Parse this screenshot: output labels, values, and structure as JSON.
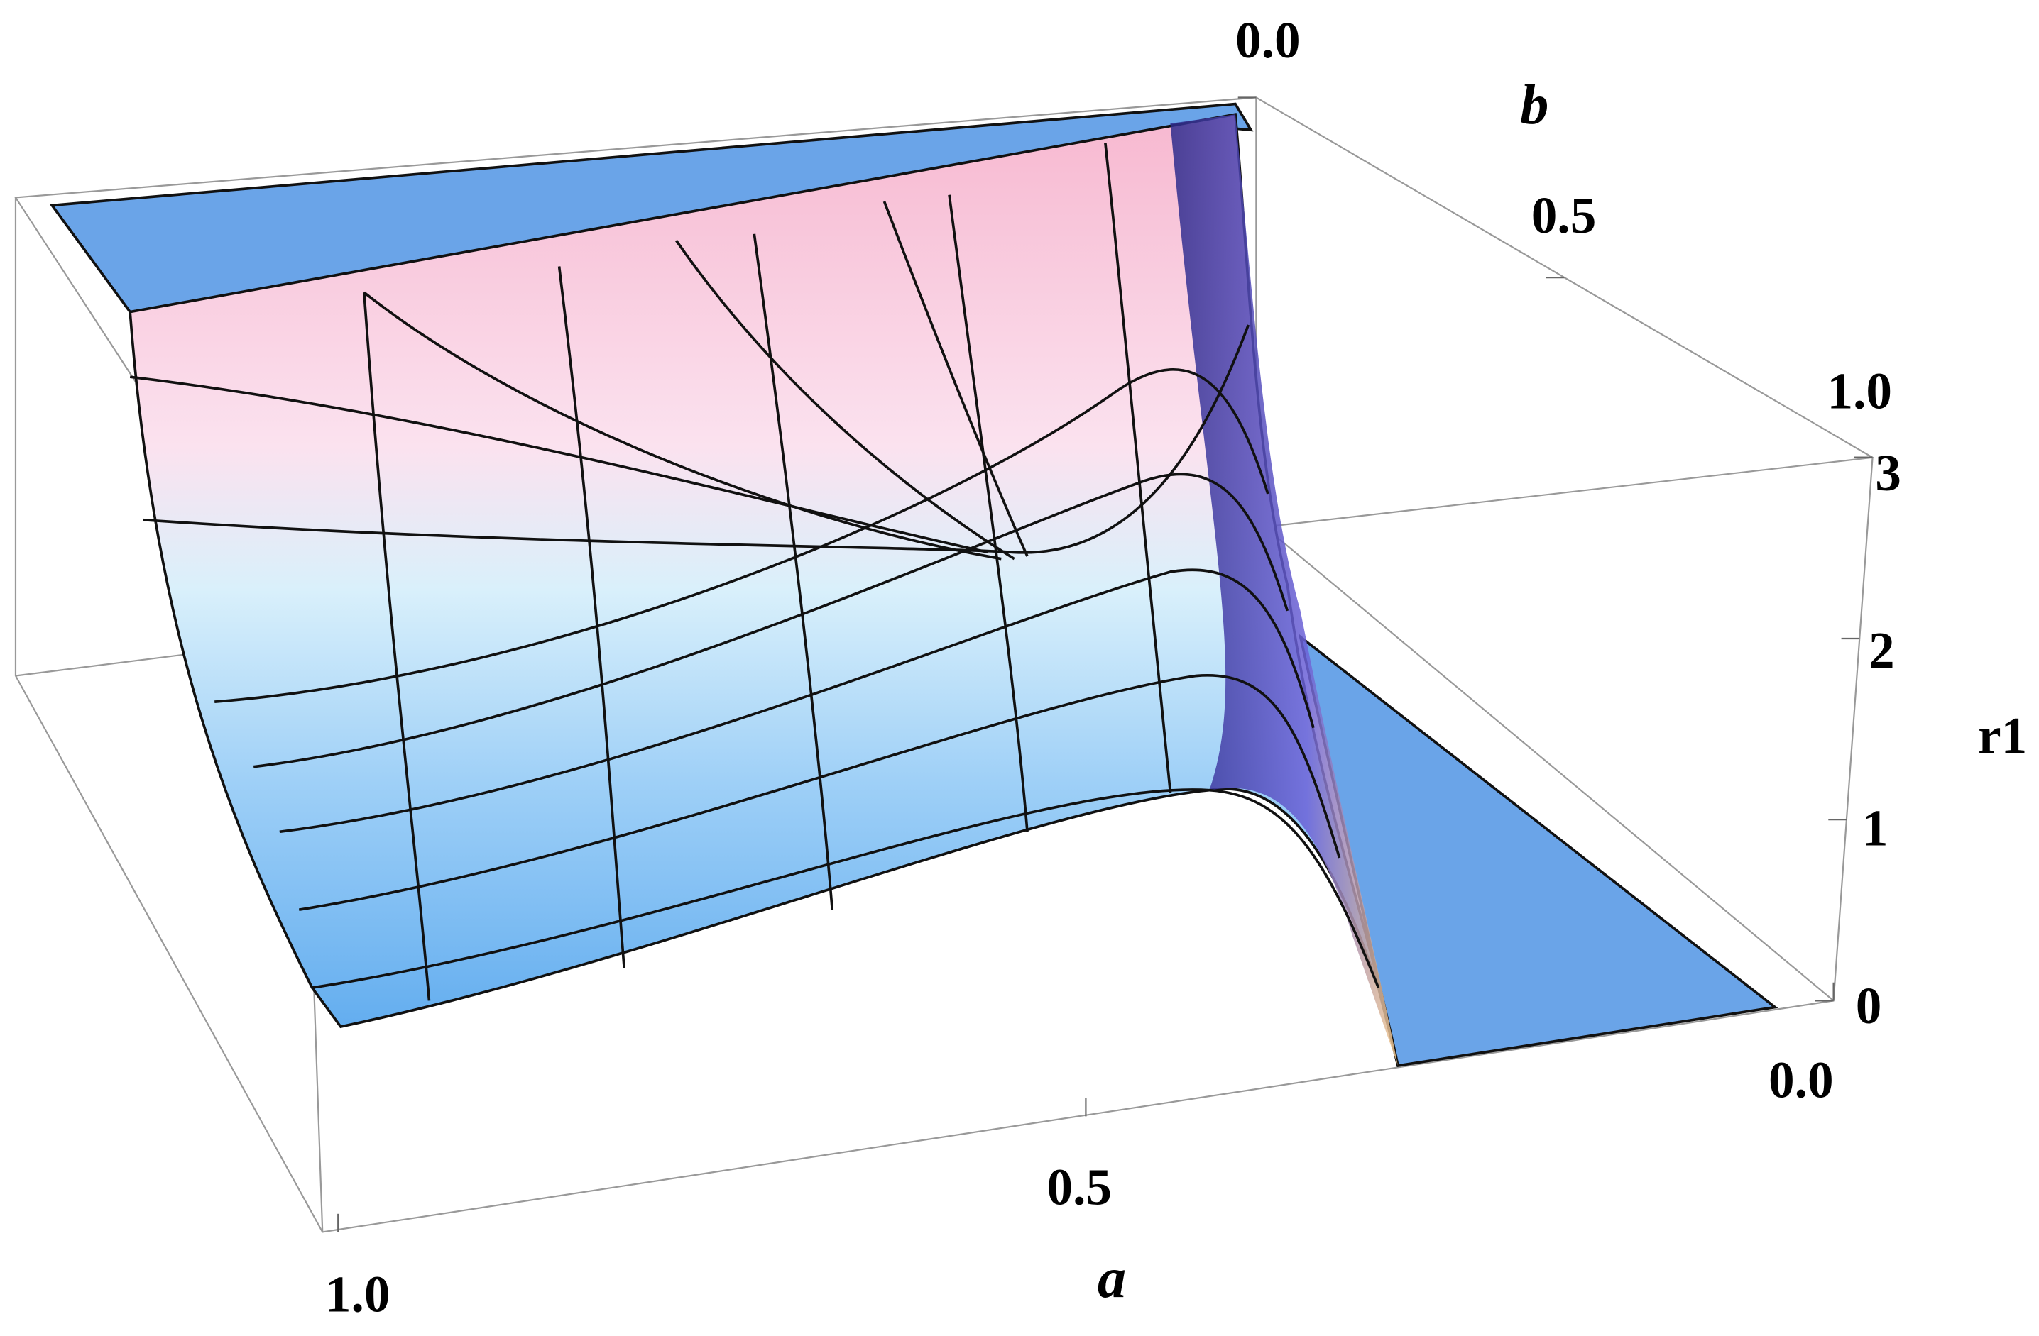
{
  "chart_data": {
    "type": "surface",
    "xlabel": "a",
    "ylabel": "b",
    "zlabel": "r1",
    "xlim": [
      1,
      0
    ],
    "ylim": [
      0,
      1
    ],
    "zlim": [
      0,
      3
    ],
    "xticks": [
      {
        "value": 1,
        "label": "1.0"
      },
      0.5,
      {
        "value": 0,
        "label": "0.0"
      }
    ],
    "yticks": [
      {
        "value": 0,
        "label": "0.0"
      },
      0.5,
      {
        "value": 1,
        "label": "1.0"
      }
    ],
    "zticks": [
      0,
      1,
      2,
      3
    ]
  }
}
